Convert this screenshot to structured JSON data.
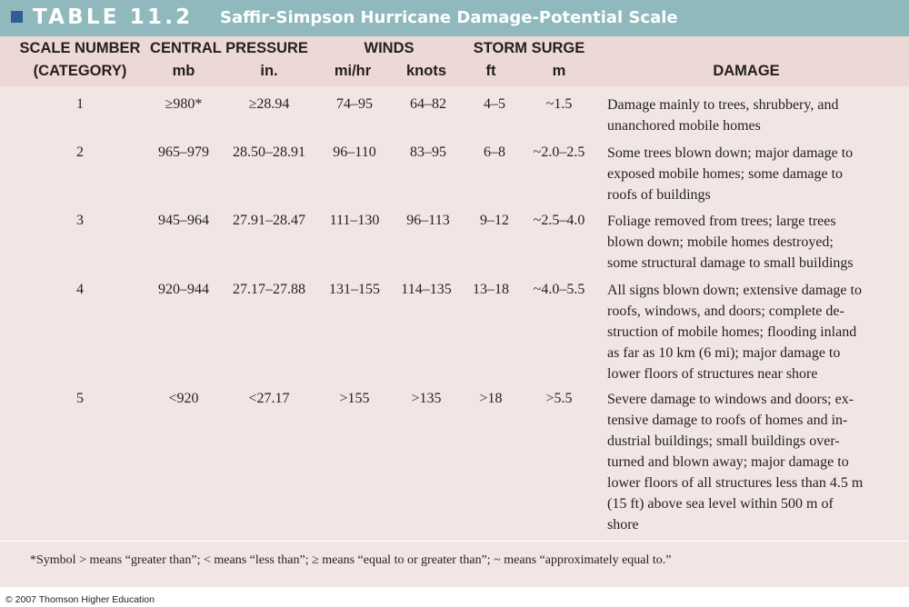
{
  "title": {
    "table_label": "TABLE 11.2",
    "table_title": "Saffir-Simpson Hurricane Damage-Potential Scale"
  },
  "headers": {
    "scale_number": "SCALE NUMBER",
    "category": "(CATEGORY)",
    "central_pressure": "CENTRAL PRESSURE",
    "mb": "mb",
    "in": "in.",
    "winds": "WINDS",
    "mihr": "mi/hr",
    "knots": "knots",
    "storm_surge": "STORM SURGE",
    "ft": "ft",
    "m": "m",
    "damage": "DAMAGE"
  },
  "rows": [
    {
      "scale": "1",
      "mb": "≥980*",
      "in": "≥28.94",
      "mihr": "74–95",
      "knots": "64–82",
      "ft": "4–5",
      "m": "~1.5",
      "damage": [
        "Damage mainly to trees, shrubbery, and",
        "unanchored mobile homes"
      ]
    },
    {
      "scale": "2",
      "mb": "965–979",
      "in": "28.50–28.91",
      "mihr": "96–110",
      "knots": "83–95",
      "ft": "6–8",
      "m": "~2.0–2.5",
      "damage": [
        "Some trees blown down; major damage to",
        "exposed mobile homes; some damage to",
        "roofs of buildings"
      ]
    },
    {
      "scale": "3",
      "mb": "945–964",
      "in": "27.91–28.47",
      "mihr": "111–130",
      "knots": "96–113",
      "ft": "9–12",
      "m": "~2.5–4.0",
      "damage": [
        "Foliage removed from trees; large trees",
        "blown down; mobile homes destroyed;",
        "some structural damage to small buildings"
      ]
    },
    {
      "scale": "4",
      "mb": "920–944",
      "in": "27.17–27.88",
      "mihr": "131–155",
      "knots": "114–135",
      "ft": "13–18",
      "m": "~4.0–5.5",
      "damage": [
        "All signs blown down; extensive damage to",
        "roofs, windows, and doors; complete de-",
        "struction of mobile homes; flooding inland",
        "as far as 10 km (6 mi); major damage to",
        "lower floors of structures near shore"
      ]
    },
    {
      "scale": "5",
      "mb": "<920",
      "in": "<27.17",
      "mihr": ">155",
      "knots": ">135",
      "ft": ">18",
      "m": ">5.5",
      "damage": [
        "Severe damage to windows and doors; ex-",
        "tensive damage to roofs of homes and in-",
        "dustrial buildings; small buildings over-",
        "turned and blown away; major damage to",
        "lower floors of all structures less than 4.5 m",
        "(15 ft) above sea level within 500 m of",
        "shore"
      ]
    }
  ],
  "footnote": "*Symbol > means “greater than”; < means “less than”; ≥ means “equal to or greater than”; ~ means “approximately equal to.”",
  "copyright": "© 2007 Thomson Higher Education",
  "colors": {
    "title_bar": "#8fb9bd",
    "header_band": "#ecd8d4",
    "body": "#f2e6e4",
    "square": "#2f5d96"
  }
}
